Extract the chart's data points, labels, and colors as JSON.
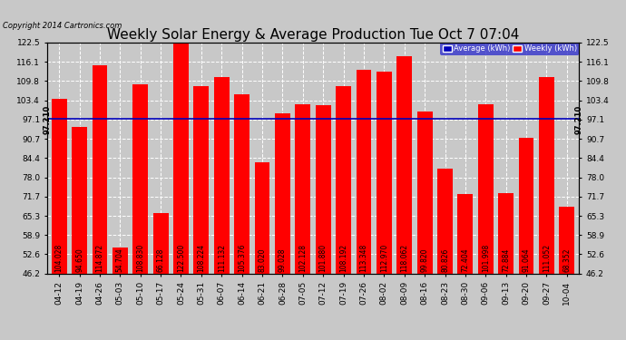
{
  "title": "Weekly Solar Energy & Average Production Tue Oct 7 07:04",
  "copyright": "Copyright 2014 Cartronics.com",
  "categories": [
    "04-12",
    "04-19",
    "04-26",
    "05-03",
    "05-10",
    "05-17",
    "05-24",
    "05-31",
    "06-07",
    "06-14",
    "06-21",
    "06-28",
    "07-05",
    "07-12",
    "07-19",
    "07-26",
    "08-02",
    "08-09",
    "08-16",
    "08-23",
    "08-30",
    "09-06",
    "09-13",
    "09-20",
    "09-27",
    "10-04"
  ],
  "values": [
    104.028,
    94.65,
    114.872,
    54.704,
    108.83,
    66.128,
    122.5,
    108.224,
    111.132,
    105.376,
    83.02,
    99.028,
    102.128,
    101.88,
    108.192,
    113.348,
    112.97,
    118.062,
    99.82,
    80.826,
    72.404,
    101.998,
    72.884,
    91.064,
    111.052,
    68.352
  ],
  "average": 97.21,
  "bar_color": "#ff0000",
  "average_line_color": "#0000bb",
  "background_color": "#c8c8c8",
  "plot_bg_color": "#c8c8c8",
  "ylim": [
    46.2,
    122.5
  ],
  "yticks": [
    46.2,
    52.6,
    58.9,
    65.3,
    71.7,
    78.0,
    84.4,
    90.7,
    97.1,
    103.4,
    109.8,
    116.1,
    122.5
  ],
  "title_fontsize": 11,
  "copyright_fontsize": 6,
  "bar_label_fontsize": 5.5,
  "tick_fontsize": 6.5,
  "legend_avg_color": "#0000bb",
  "legend_weekly_color": "#ff0000",
  "avg_label": "Average (kWh)",
  "weekly_label": "Weekly (kWh)",
  "avg_annotation": "97.210",
  "grid_color": "#ffffff"
}
